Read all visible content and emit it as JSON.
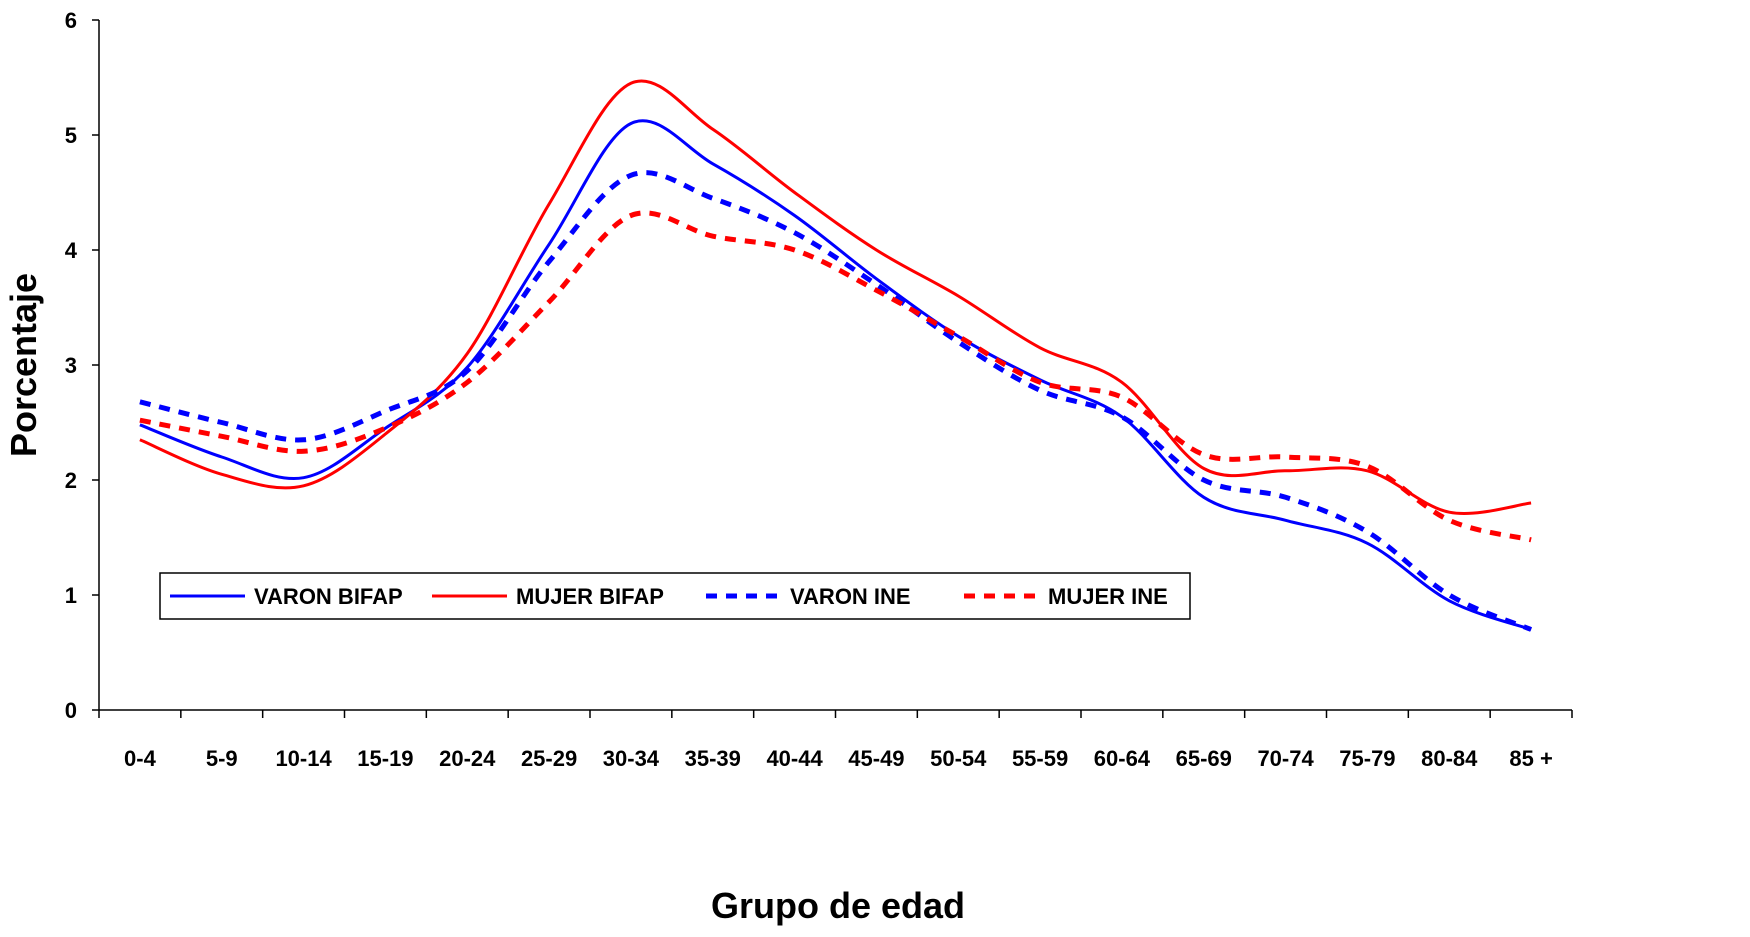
{
  "chart_data": {
    "type": "line",
    "xlabel": "Grupo de edad",
    "ylabel": "Porcentaje",
    "ylim": [
      0,
      6
    ],
    "yticks": [
      "0",
      "1",
      "2",
      "3",
      "4",
      "5",
      "6"
    ],
    "categories": [
      "0-4",
      "5-9",
      "10-14",
      "15-19",
      "20-24",
      "25-29",
      "30-34",
      "35-39",
      "40-44",
      "45-49",
      "50-54",
      "55-59",
      "60-64",
      "65-69",
      "70-74",
      "75-79",
      "80-84",
      "85 +"
    ],
    "grid": false,
    "legend_position": "bottom-left",
    "series": [
      {
        "name": "VARON BIFAP",
        "color": "#0000ff",
        "style": "solid",
        "values": [
          2.48,
          2.2,
          2.02,
          2.45,
          2.98,
          4.05,
          5.1,
          4.75,
          4.3,
          3.75,
          3.25,
          2.87,
          2.55,
          1.85,
          1.65,
          1.45,
          0.95,
          0.7
        ]
      },
      {
        "name": "MUJER BIFAP",
        "color": "#ff0000",
        "style": "solid",
        "values": [
          2.35,
          2.05,
          1.95,
          2.4,
          3.1,
          4.4,
          5.45,
          5.05,
          4.5,
          4.0,
          3.6,
          3.15,
          2.85,
          2.1,
          2.08,
          2.08,
          1.72,
          1.8
        ]
      },
      {
        "name": "VARON INE",
        "color": "#0000ff",
        "style": "dashed",
        "values": [
          2.68,
          2.5,
          2.35,
          2.6,
          2.95,
          3.9,
          4.65,
          4.45,
          4.15,
          3.7,
          3.2,
          2.78,
          2.55,
          2.0,
          1.85,
          1.55,
          1.0,
          0.7
        ]
      },
      {
        "name": "MUJER INE",
        "color": "#ff0000",
        "style": "dashed",
        "values": [
          2.52,
          2.38,
          2.25,
          2.45,
          2.85,
          3.55,
          4.3,
          4.12,
          4.0,
          3.65,
          3.25,
          2.85,
          2.72,
          2.22,
          2.2,
          2.12,
          1.65,
          1.48
        ]
      }
    ]
  }
}
